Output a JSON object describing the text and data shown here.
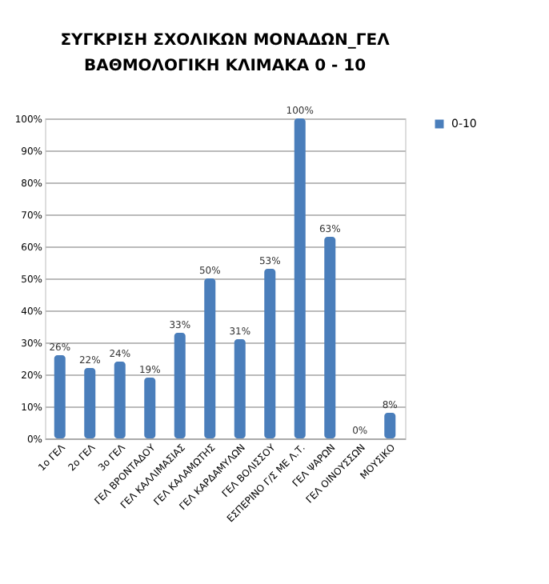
{
  "chart_data": {
    "type": "bar",
    "title": "ΣΥΓΚΡΙΣΗ ΣΧΟΛΙΚΩΝ ΜΟΝΑΔΩΝ_ΓΕΛ",
    "subtitle": "ΒΑΘΜΟΛΟΓΙΚΗ ΚΛΙΜΑΚΑ 0 - 10",
    "categories": [
      "1ο ΓΕΛ",
      "2ο ΓΕΛ",
      "3ο ΓΕΛ",
      "ΓΕΛ ΒΡΟΝΤΑΔΟΥ",
      "ΓΕΛ ΚΑΛΛΙΜΑΣΙΑΣ",
      "ΓΕΛ ΚΑΛΑΜΩΤΗΣ",
      "ΓΕΛ ΚΑΡΔΑΜΥΛΩΝ",
      "ΓΕΛ ΒΟΛΙΣΣΟΥ",
      "ΕΣΠΕΡΙΝΟ Γ/Σ ΜΕ Λ.Τ.",
      "ΓΕΛ ΨΑΡΩΝ",
      "ΓΕΛ ΟΙΝΟΥΣΣΩΝ",
      "ΜΟΥΣΙΚΟ"
    ],
    "series": [
      {
        "name": "0-10",
        "color": "#4a7ebb",
        "values": [
          26,
          22,
          24,
          19,
          33,
          50,
          31,
          53,
          100,
          63,
          0,
          8
        ]
      }
    ],
    "value_labels": [
      "26%",
      "22%",
      "24%",
      "19%",
      "33%",
      "50%",
      "31%",
      "53%",
      "100%",
      "63%",
      "0%",
      "8%"
    ],
    "ylim": [
      0,
      100
    ],
    "yticks": [
      {
        "value": 0,
        "label": "0%"
      },
      {
        "value": 10,
        "label": "10%"
      },
      {
        "value": 20,
        "label": "20%"
      },
      {
        "value": 30,
        "label": "30%"
      },
      {
        "value": 40,
        "label": "40%"
      },
      {
        "value": 50,
        "label": "50%"
      },
      {
        "value": 60,
        "label": "60%"
      },
      {
        "value": 70,
        "label": "70%"
      },
      {
        "value": 80,
        "label": "80%"
      },
      {
        "value": 90,
        "label": "90%"
      },
      {
        "value": 100,
        "label": "100%"
      }
    ],
    "grid": "y",
    "legend": "right"
  }
}
